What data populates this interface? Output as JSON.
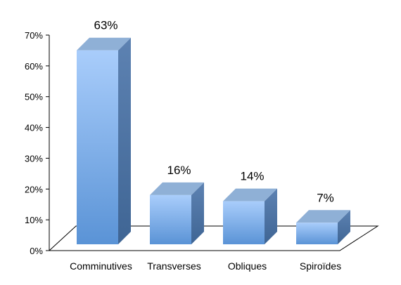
{
  "chart_data": {
    "type": "bar",
    "categories": [
      "Comminutives",
      "Transverses",
      "Obliques",
      "Spiroïdes"
    ],
    "values": [
      63,
      16,
      14,
      7
    ],
    "data_labels": [
      "63%",
      "16%",
      "14%",
      "7%"
    ],
    "title": "",
    "xlabel": "",
    "ylabel": "",
    "ylim": [
      0,
      70
    ],
    "yticks": [
      0,
      10,
      20,
      30,
      40,
      50,
      60,
      70
    ],
    "ytick_labels": [
      "0%",
      "10%",
      "20%",
      "30%",
      "40%",
      "50%",
      "60%",
      "70%"
    ],
    "grid": false,
    "style": "3d-bar",
    "colors": {
      "front_top": "#a9cdfb",
      "front_bottom": "#5a93d6",
      "side": "#476f9e",
      "top": "#8fb0d6",
      "floor": "#ffffff",
      "axis": "#000000"
    }
  }
}
